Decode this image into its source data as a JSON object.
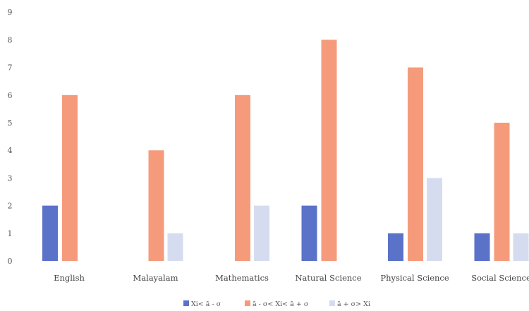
{
  "chart_data": {
    "type": "bar",
    "categories": [
      "English",
      "Malayalam",
      "Mathematics",
      "Natural Science",
      "Physical Science",
      "Social Science"
    ],
    "series": [
      {
        "name": "Xi< ā - σ",
        "color": "#5b72c9",
        "values": [
          2,
          0,
          0,
          2,
          1,
          1
        ]
      },
      {
        "name": "ā - σ< Xi< ā + σ",
        "color": "#f59b7c",
        "values": [
          6,
          4,
          6,
          8,
          7,
          5
        ]
      },
      {
        "name": "ā + σ> Xi",
        "color": "#d6dcf0",
        "values": [
          0,
          1,
          2,
          0,
          3,
          1
        ]
      }
    ],
    "ylim": [
      0,
      9
    ],
    "yticks": [
      "0",
      "1",
      "2",
      "3",
      "4",
      "5",
      "6",
      "7",
      "8",
      "9"
    ],
    "grid": false,
    "legend_position": "bottom-center",
    "title": "",
    "xlabel": "",
    "ylabel": ""
  }
}
